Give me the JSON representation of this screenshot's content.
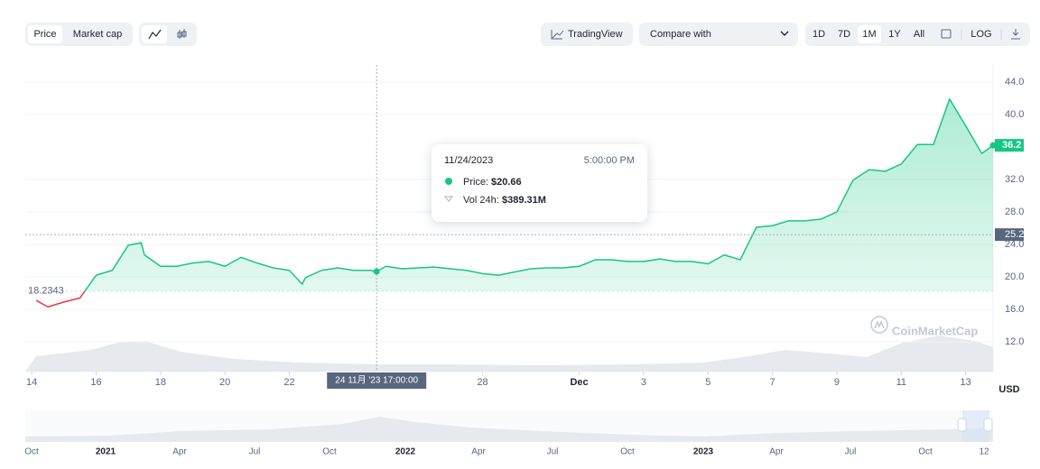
{
  "toolbar": {
    "tabs": [
      "Price",
      "Market cap"
    ],
    "tradingview": "TradingView",
    "compare": "Compare with",
    "ranges": [
      "1D",
      "7D",
      "1M",
      "1Y",
      "All"
    ],
    "log": "LOG"
  },
  "chart_data": {
    "type": "line",
    "x": [
      0.14,
      0.5,
      1,
      1.5,
      2,
      2.5,
      3,
      3.4,
      3.5,
      4,
      4.5,
      5,
      5.5,
      6,
      6.5,
      7,
      7.5,
      8,
      8.4,
      8.5,
      9,
      9.5,
      10,
      10.5,
      10.71,
      11,
      11.5,
      12,
      12.5,
      13,
      13.5,
      14,
      14.5,
      15,
      15.5,
      16,
      16.5,
      17,
      17.5,
      18,
      18.5,
      19,
      19.5,
      20,
      20.5,
      21,
      21.5,
      22,
      22.5,
      23,
      23.5,
      24,
      24.5,
      25,
      25.5,
      26,
      26.5,
      27,
      27.5,
      28,
      28.5,
      29,
      29.5,
      29.85
    ],
    "values": [
      17.1,
      16.3,
      16.9,
      17.4,
      20.2,
      20.8,
      23.9,
      24.2,
      22.7,
      21.3,
      21.3,
      21.7,
      21.9,
      21.3,
      22.4,
      21.7,
      21.1,
      20.8,
      19.1,
      19.9,
      20.8,
      21.1,
      20.8,
      20.8,
      20.66,
      21.3,
      21.0,
      21.1,
      21.2,
      21.0,
      20.8,
      20.4,
      20.2,
      20.6,
      21.0,
      21.1,
      21.1,
      21.3,
      22.1,
      22.1,
      21.9,
      21.9,
      22.2,
      21.9,
      21.9,
      21.6,
      22.7,
      22.1,
      26.1,
      26.3,
      26.9,
      26.9,
      27.1,
      28.0,
      31.9,
      33.2,
      33.0,
      33.9,
      36.3,
      36.3,
      41.9,
      38.6,
      35.2,
      36.2
    ],
    "color": "#16c784",
    "below_color": "#ea3943",
    "baseline": {
      "value": 18.2343,
      "label": "18.2343"
    },
    "last_label": {
      "value": 36.2,
      "label": "36.2"
    },
    "crosshair": {
      "x": 10.71,
      "y": 25.2,
      "y_label": "25.2",
      "x_label": "24 11月 '23  17:00:00"
    },
    "tooltip": {
      "date": "11/24/2023",
      "time": "5:00:00 PM",
      "price_label": "Price:",
      "price": "$20.66",
      "vol_label": "Vol 24h:",
      "vol": "$389.31M"
    },
    "xlim": [
      -0.2,
      29.85
    ],
    "xticks": [
      {
        "value": 0,
        "label": "14"
      },
      {
        "value": 2,
        "label": "16"
      },
      {
        "value": 4,
        "label": "18"
      },
      {
        "value": 6,
        "label": "20"
      },
      {
        "value": 8,
        "label": "22"
      },
      {
        "value": 14,
        "label": "28"
      },
      {
        "value": 17,
        "label": "Dec"
      },
      {
        "value": 19,
        "label": "3"
      },
      {
        "value": 21,
        "label": "5"
      },
      {
        "value": 23,
        "label": "7"
      },
      {
        "value": 25,
        "label": "9"
      },
      {
        "value": 27,
        "label": "11"
      },
      {
        "value": 29,
        "label": "13"
      }
    ],
    "ylim": [
      8.33,
      46.1
    ],
    "yticks": [
      {
        "value": 12,
        "label": "12.0"
      },
      {
        "value": 16,
        "label": "16.0"
      },
      {
        "value": 20,
        "label": "20.0"
      },
      {
        "value": 24,
        "label": "24.0"
      },
      {
        "value": 28,
        "label": "28.0"
      },
      {
        "value": 32,
        "label": "32.0"
      },
      {
        "value": 40,
        "label": "40.0"
      },
      {
        "value": 44,
        "label": "44.0"
      }
    ],
    "y_unit": "USD",
    "grid": true,
    "watermark": "CoinMarketCap"
  },
  "navigator": {
    "labels": [
      "Oct",
      "2021",
      "Apr",
      "Jul",
      "Oct",
      "2022",
      "Apr",
      "Jul",
      "Oct",
      "2023",
      "Apr",
      "Jul",
      "Oct",
      "12"
    ]
  }
}
